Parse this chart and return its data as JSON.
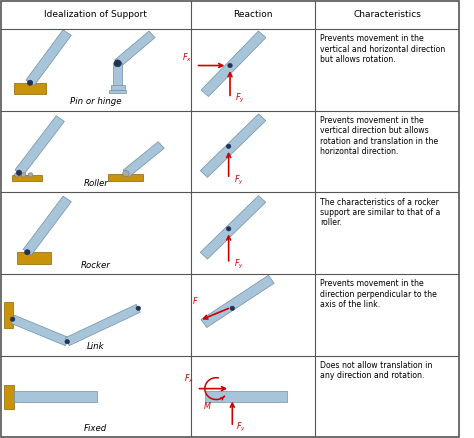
{
  "col_headers": [
    "Idealization of Support",
    "Reaction",
    "Characteristics"
  ],
  "row_labels": [
    "Pin or hinge",
    "Roller",
    "Rocker",
    "Link",
    "Fixed"
  ],
  "characteristics": [
    "Prevents movement in the\nvertical and horizontal direction\nbut allows rotation.",
    "Prevents movement in the\nvertical direction but allows\nrotation and translation in the\nhorizontal direction.",
    "The characteristics of a rocker\nsupport are similar to that of a\nroller.",
    "Prevents movement in the\ndirection perpendicular to the\naxis of the link.",
    "Does not allow translation in\nany direction and rotation."
  ],
  "bg_color": "#ffffff",
  "border_color": "#555555",
  "text_color": "#000000",
  "red_color": "#cc0000",
  "beam_color": "#a8c4d8",
  "beam_edge": "#7090a8",
  "gold_color": "#c8920a",
  "gold_edge": "#8a6400",
  "pin_color": "#223355",
  "fig_width": 4.74,
  "fig_height": 4.38,
  "dpi": 100
}
